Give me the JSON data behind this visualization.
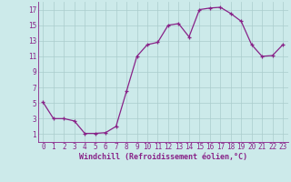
{
  "x": [
    0,
    1,
    2,
    3,
    4,
    5,
    6,
    7,
    8,
    9,
    10,
    11,
    12,
    13,
    14,
    15,
    16,
    17,
    18,
    19,
    20,
    21,
    22,
    23
  ],
  "y": [
    5.1,
    3.0,
    3.0,
    2.7,
    1.1,
    1.1,
    1.2,
    2.0,
    6.5,
    11.0,
    12.5,
    12.8,
    15.0,
    15.2,
    13.5,
    17.0,
    17.2,
    17.3,
    16.5,
    15.5,
    12.5,
    11.0,
    11.1,
    12.5
  ],
  "xlabel": "Windchill (Refroidissement éolien,°C)",
  "line_color": "#882288",
  "marker": "+",
  "bg_color": "#cceaea",
  "grid_color": "#aacccc",
  "tick_label_color": "#882288",
  "xlabel_color": "#882288",
  "xlim": [
    -0.5,
    23.5
  ],
  "ylim": [
    0,
    18
  ],
  "yticks": [
    1,
    3,
    5,
    7,
    9,
    11,
    13,
    15,
    17
  ],
  "xticks": [
    0,
    1,
    2,
    3,
    4,
    5,
    6,
    7,
    8,
    9,
    10,
    11,
    12,
    13,
    14,
    15,
    16,
    17,
    18,
    19,
    20,
    21,
    22,
    23
  ],
  "font_family": "monospace",
  "tick_fontsize": 5.5,
  "xlabel_fontsize": 6.0
}
